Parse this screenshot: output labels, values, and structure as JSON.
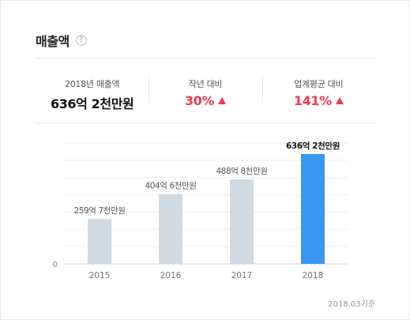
{
  "header": {
    "title": "매출액",
    "help_glyph": "?"
  },
  "summary": [
    {
      "label": "2018년 매출액",
      "value": "636억 2천만원",
      "trend": "none"
    },
    {
      "label": "작년 대비",
      "value": "30%",
      "trend": "up"
    },
    {
      "label": "업계평균 대비",
      "value": "141%",
      "trend": "up"
    }
  ],
  "colors": {
    "up": "#f0384f",
    "bar_default": "#d0dae3",
    "bar_highlight": "#3897f0",
    "grid": "#eeeeee"
  },
  "chart_data": {
    "type": "bar",
    "categories": [
      "2015",
      "2016",
      "2017",
      "2018"
    ],
    "values": [
      259.7,
      404.6,
      488.8,
      636.2
    ],
    "value_labels": [
      "259억 7천만원",
      "404억 6천만원",
      "488억 8천만원",
      "636억 2천만원"
    ],
    "highlight_index": 3,
    "y_ticks": [
      0
    ],
    "ylim": [
      0,
      700
    ],
    "grid": true
  },
  "footnote": "2018.03기준"
}
